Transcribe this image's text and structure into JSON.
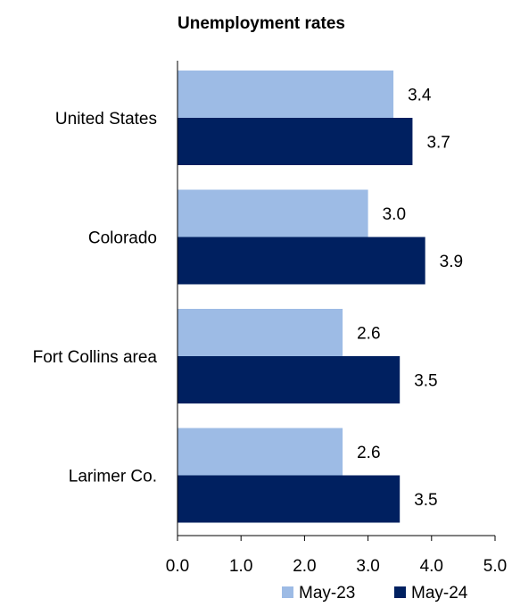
{
  "chart_data": {
    "type": "bar",
    "orientation": "horizontal",
    "title": "Unemployment rates",
    "categories": [
      "United States",
      "Colorado",
      "Fort Collins area",
      "Larimer Co."
    ],
    "series": [
      {
        "name": "May-23",
        "color": "#9dbbe5",
        "values": [
          3.4,
          3.0,
          2.6,
          2.6
        ],
        "labels": [
          "3.4",
          "3.0",
          "2.6",
          "2.6"
        ]
      },
      {
        "name": "May-24",
        "color": "#002060",
        "values": [
          3.7,
          3.9,
          3.5,
          3.5
        ],
        "labels": [
          "3.7",
          "3.9",
          "3.5",
          "3.5"
        ]
      }
    ],
    "xlim": [
      0,
      5
    ],
    "xticks": [
      0,
      1,
      2,
      3,
      4,
      5
    ],
    "xtick_labels": [
      "0.0",
      "1.0",
      "2.0",
      "3.0",
      "4.0",
      "5.0"
    ],
    "grid": false,
    "legend_position": "bottom-right"
  }
}
